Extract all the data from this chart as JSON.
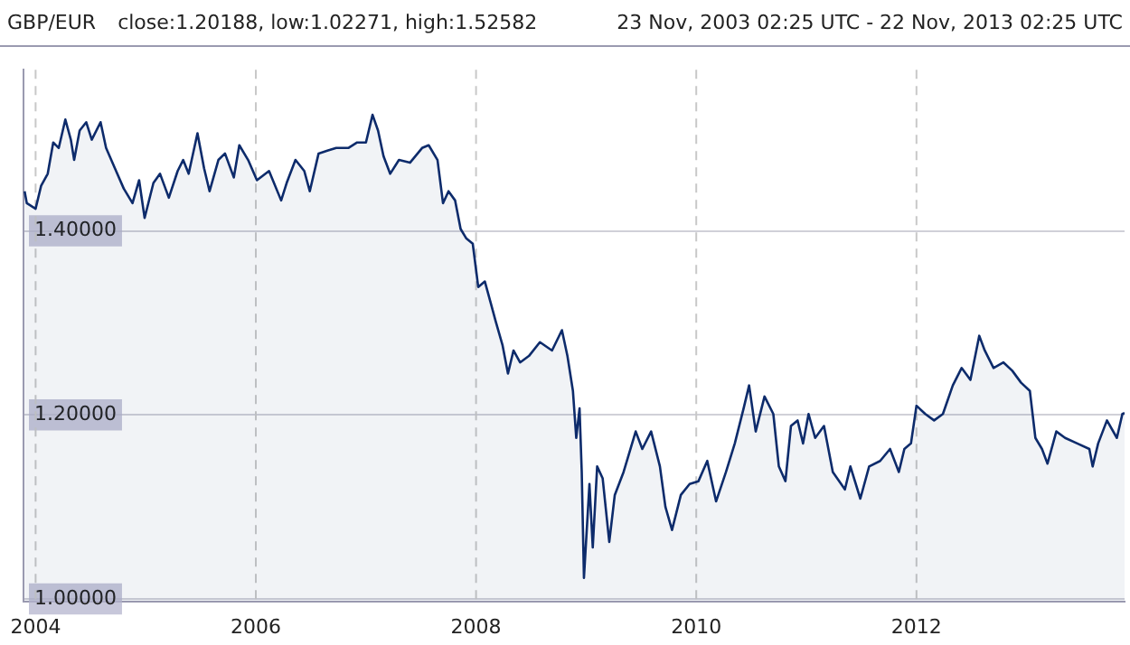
{
  "chart_data": {
    "type": "area",
    "title": "GBP/EUR",
    "subtitle": "close:1.20188, low:1.02271, high:1.52582",
    "annotations": [
      "23 Nov, 2003 02:25 UTC - 22 Nov, 2013 02:25 UTC"
    ],
    "xlim": [
      2003.89,
      2013.89
    ],
    "xticks": [
      2004,
      2006,
      2008,
      2010,
      2012
    ],
    "ylim": [
      0.9975,
      1.575
    ],
    "yticks": [
      {
        "value": 1.0,
        "label": "1.00000"
      },
      {
        "value": 1.2,
        "label": "1.20000"
      },
      {
        "value": 1.4,
        "label": "1.40000"
      }
    ],
    "grid": true,
    "legend": false,
    "marker": "none",
    "line_style": "solid",
    "series": [
      {
        "color": "#0d2b6b",
        "x": [
          2003.9,
          2003.92,
          2004.0,
          2004.05,
          2004.11,
          2004.16,
          2004.21,
          2004.27,
          2004.32,
          2004.35,
          2004.4,
          2004.46,
          2004.51,
          2004.59,
          2004.64,
          2004.72,
          2004.8,
          2004.88,
          2004.94,
          2004.99,
          2005.07,
          2005.13,
          2005.21,
          2005.29,
          2005.34,
          2005.39,
          2005.47,
          2005.53,
          2005.58,
          2005.66,
          2005.72,
          2005.8,
          2005.85,
          2005.93,
          2006.01,
          2006.12,
          2006.23,
          2006.28,
          2006.36,
          2006.44,
          2006.49,
          2006.57,
          2006.65,
          2006.73,
          2006.84,
          2006.92,
          2007.0,
          2007.06,
          2007.11,
          2007.16,
          2007.22,
          2007.3,
          2007.4,
          2007.51,
          2007.57,
          2007.65,
          2007.7,
          2007.75,
          2007.81,
          2007.86,
          2007.91,
          2007.97,
          2008.02,
          2008.08,
          2008.13,
          2008.18,
          2008.24,
          2008.29,
          2008.34,
          2008.4,
          2008.48,
          2008.58,
          2008.69,
          2008.78,
          2008.83,
          2008.88,
          2008.91,
          2008.94,
          2008.96,
          2008.98,
          2009.03,
          2009.06,
          2009.1,
          2009.15,
          2009.21,
          2009.26,
          2009.34,
          2009.45,
          2009.51,
          2009.59,
          2009.67,
          2009.72,
          2009.78,
          2009.86,
          2009.94,
          2010.02,
          2010.1,
          2010.18,
          2010.27,
          2010.35,
          2010.43,
          2010.48,
          2010.54,
          2010.62,
          2010.7,
          2010.75,
          2010.81,
          2010.86,
          2010.92,
          2010.97,
          2011.02,
          2011.08,
          2011.16,
          2011.24,
          2011.35,
          2011.4,
          2011.49,
          2011.57,
          2011.67,
          2011.76,
          2011.84,
          2011.89,
          2011.95,
          2012.0,
          2012.08,
          2012.16,
          2012.24,
          2012.33,
          2012.41,
          2012.49,
          2012.57,
          2012.62,
          2012.7,
          2012.79,
          2012.87,
          2012.95,
          2013.03,
          2013.08,
          2013.14,
          2013.19,
          2013.27,
          2013.35,
          2013.46,
          2013.57,
          2013.6,
          2013.65,
          2013.73,
          2013.82,
          2013.87,
          2013.89
        ],
        "values": [
          1.443,
          1.43,
          1.424,
          1.449,
          1.462,
          1.496,
          1.49,
          1.521,
          1.499,
          1.477,
          1.509,
          1.518,
          1.499,
          1.518,
          1.49,
          1.468,
          1.446,
          1.43,
          1.455,
          1.414,
          1.452,
          1.462,
          1.436,
          1.465,
          1.477,
          1.462,
          1.506,
          1.468,
          1.443,
          1.477,
          1.484,
          1.458,
          1.493,
          1.477,
          1.455,
          1.465,
          1.433,
          1.452,
          1.477,
          1.465,
          1.443,
          1.484,
          1.487,
          1.49,
          1.49,
          1.496,
          1.496,
          1.526,
          1.509,
          1.481,
          1.462,
          1.477,
          1.474,
          1.49,
          1.493,
          1.477,
          1.43,
          1.443,
          1.433,
          1.402,
          1.392,
          1.386,
          1.339,
          1.345,
          1.323,
          1.301,
          1.276,
          1.245,
          1.27,
          1.257,
          1.264,
          1.279,
          1.27,
          1.292,
          1.264,
          1.226,
          1.175,
          1.207,
          1.138,
          1.023,
          1.125,
          1.056,
          1.144,
          1.131,
          1.062,
          1.113,
          1.138,
          1.182,
          1.163,
          1.182,
          1.144,
          1.1,
          1.075,
          1.113,
          1.125,
          1.128,
          1.15,
          1.106,
          1.138,
          1.169,
          1.207,
          1.232,
          1.182,
          1.22,
          1.201,
          1.144,
          1.128,
          1.188,
          1.194,
          1.169,
          1.201,
          1.175,
          1.188,
          1.138,
          1.119,
          1.144,
          1.109,
          1.144,
          1.15,
          1.163,
          1.138,
          1.163,
          1.169,
          1.21,
          1.201,
          1.194,
          1.201,
          1.232,
          1.251,
          1.238,
          1.286,
          1.27,
          1.251,
          1.257,
          1.248,
          1.235,
          1.226,
          1.175,
          1.163,
          1.147,
          1.182,
          1.175,
          1.169,
          1.163,
          1.144,
          1.169,
          1.194,
          1.175,
          1.201,
          1.202
        ]
      }
    ]
  }
}
